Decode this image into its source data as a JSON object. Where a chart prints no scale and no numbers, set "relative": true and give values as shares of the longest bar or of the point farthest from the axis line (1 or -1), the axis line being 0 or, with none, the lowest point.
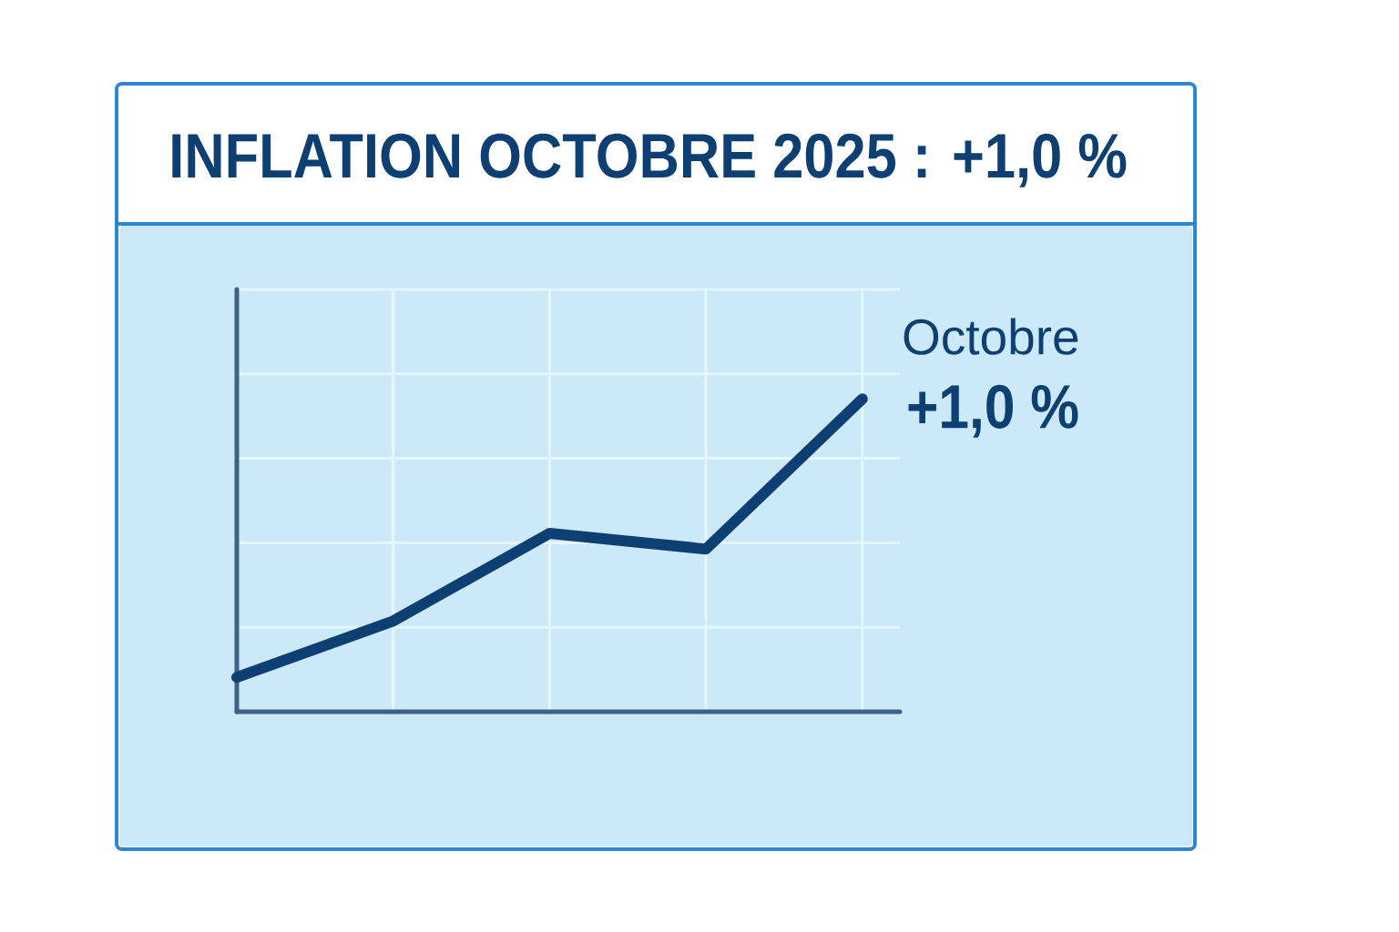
{
  "chart_data": {
    "type": "line",
    "title": "INFLATION OCTOBRE 2025 : +1,0 %",
    "annotations": [
      "Octobre",
      "+1,0 %"
    ],
    "categories": [
      null,
      null,
      null,
      null,
      null
    ],
    "relative": true,
    "series": [
      {
        "color": "#0e3f73",
        "values": [
          0.11,
          0.29,
          0.57,
          0.52,
          1
        ]
      }
    ],
    "grid": true
  }
}
